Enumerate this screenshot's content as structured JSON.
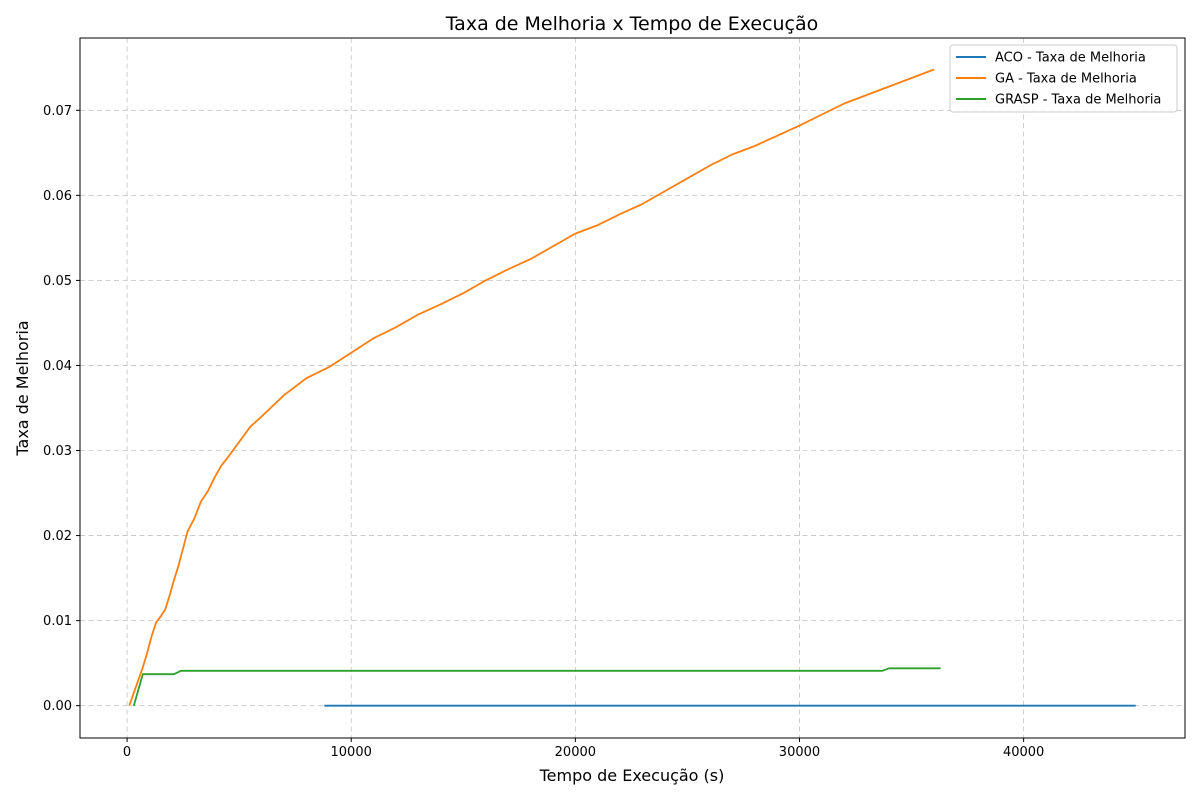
{
  "chart_data": {
    "type": "line",
    "title": "Taxa de Melhoria x Tempo de Execução",
    "xlabel": "Tempo de Execução (s)",
    "ylabel": "Taxa de Melhoria",
    "xlim": [
      -2100,
      47200
    ],
    "ylim": [
      -0.0038,
      0.0785
    ],
    "xticks": [
      0,
      10000,
      20000,
      30000,
      40000
    ],
    "xtick_labels": [
      "0",
      "10000",
      "20000",
      "30000",
      "40000"
    ],
    "yticks": [
      0.0,
      0.01,
      0.02,
      0.03,
      0.04,
      0.05,
      0.06,
      0.07
    ],
    "ytick_labels": [
      "0.00",
      "0.01",
      "0.02",
      "0.03",
      "0.04",
      "0.05",
      "0.06",
      "0.07"
    ],
    "grid": true,
    "legend_position": "top-right",
    "series": [
      {
        "name": "ACO - Taxa de Melhoria",
        "color": "#1f77b4",
        "x": [
          8800,
          45000
        ],
        "y": [
          0.0,
          0.0
        ]
      },
      {
        "name": "GA - Taxa de Melhoria",
        "color": "#ff7f0e",
        "x": [
          100,
          300,
          500,
          700,
          900,
          1100,
          1300,
          1500,
          1700,
          1900,
          2100,
          2300,
          2500,
          2700,
          3000,
          3300,
          3600,
          3900,
          4200,
          4500,
          5000,
          5500,
          6000,
          7000,
          8000,
          9000,
          10000,
          11000,
          12000,
          13000,
          14000,
          15000,
          16000,
          17000,
          18000,
          19000,
          20000,
          21000,
          22000,
          23000,
          24000,
          25000,
          26000,
          27000,
          28000,
          29000,
          30000,
          31000,
          32000,
          33000,
          34000,
          35000,
          36000
        ],
        "y": [
          0.0,
          0.0015,
          0.003,
          0.0045,
          0.0062,
          0.0082,
          0.0098,
          0.0105,
          0.0113,
          0.013,
          0.0148,
          0.0165,
          0.0185,
          0.0205,
          0.022,
          0.024,
          0.0252,
          0.0268,
          0.0282,
          0.0292,
          0.031,
          0.0328,
          0.034,
          0.0365,
          0.0385,
          0.0398,
          0.0415,
          0.0432,
          0.0445,
          0.046,
          0.0472,
          0.0485,
          0.05,
          0.0513,
          0.0525,
          0.054,
          0.0555,
          0.0565,
          0.0578,
          0.059,
          0.0605,
          0.062,
          0.0635,
          0.0648,
          0.0658,
          0.067,
          0.0682,
          0.0695,
          0.0708,
          0.0718,
          0.0728,
          0.0738,
          0.0748
        ]
      },
      {
        "name": "GRASP - Taxa de Melhoria",
        "color": "#2ca02c",
        "x": [
          300,
          700,
          2100,
          2400,
          33700,
          34000,
          36300
        ],
        "y": [
          0.0,
          0.0037,
          0.0037,
          0.0041,
          0.0041,
          0.0044,
          0.0044
        ]
      }
    ]
  }
}
